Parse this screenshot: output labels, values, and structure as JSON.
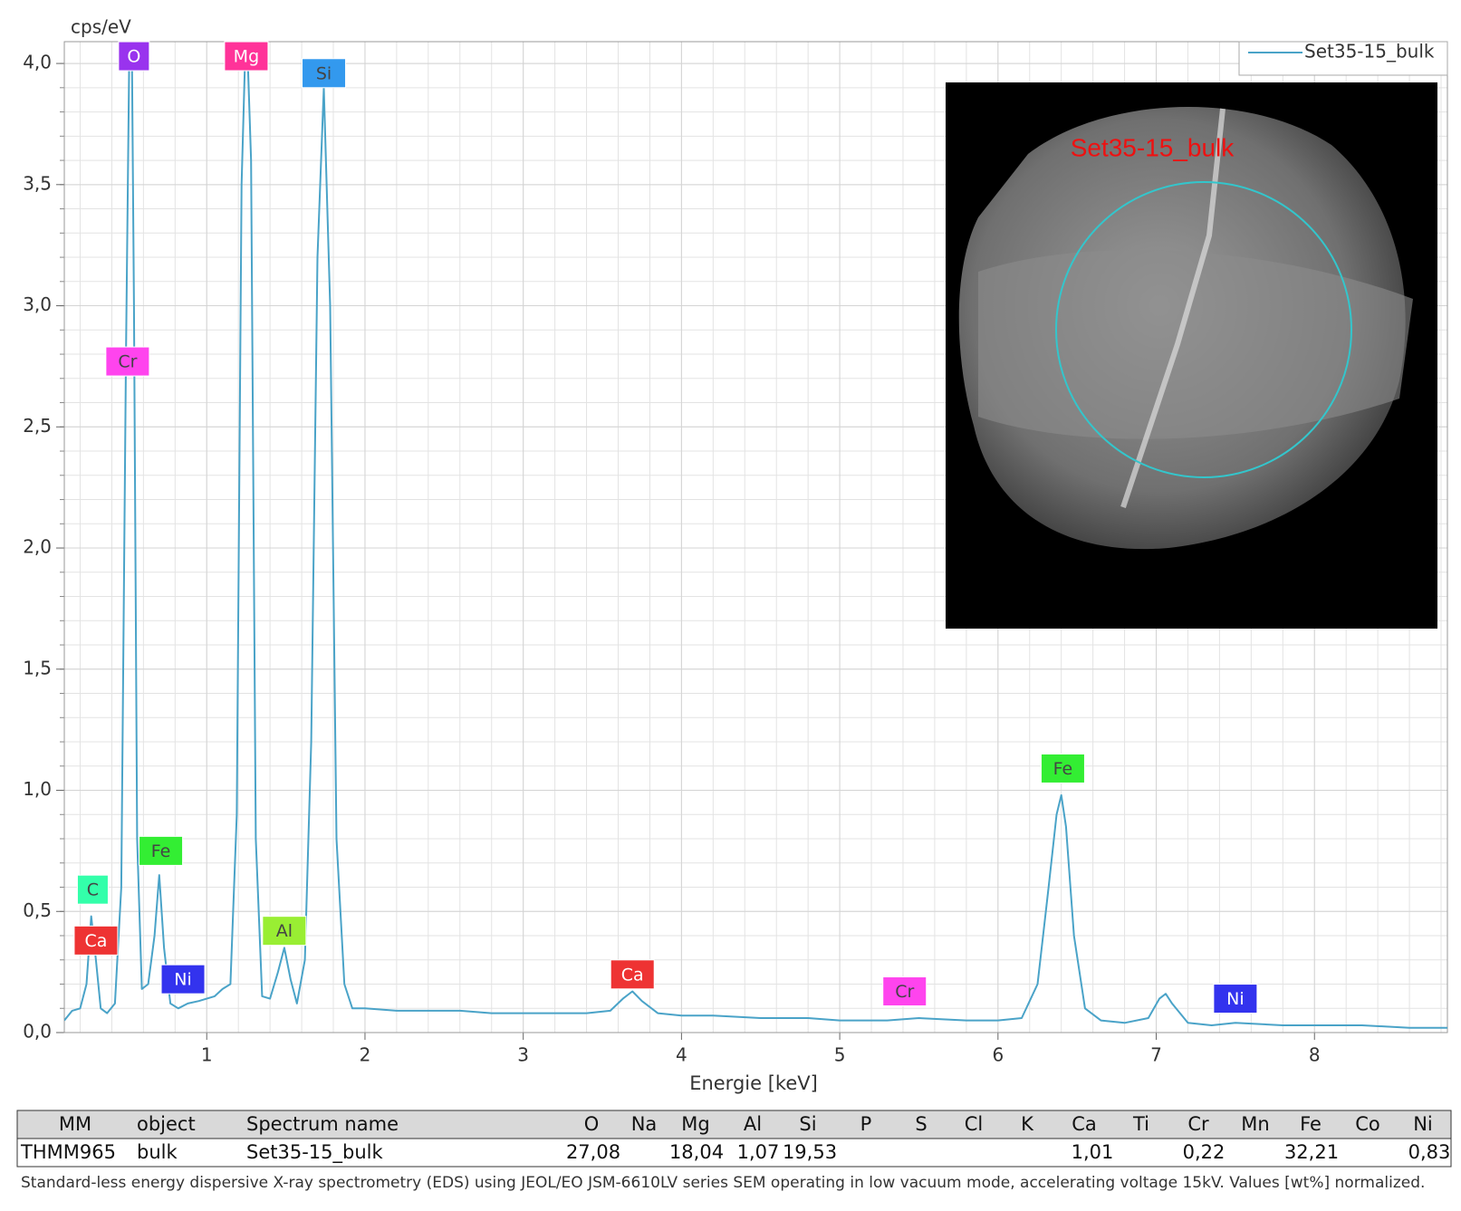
{
  "chart_data": {
    "type": "line",
    "y_unit_label": "cps/eV",
    "x_label": "Energie [keV]",
    "xlim": [
      0.1,
      8.84
    ],
    "ylim": [
      0,
      4.09
    ],
    "xticks": [
      1,
      2,
      3,
      4,
      5,
      6,
      7,
      8
    ],
    "yticks": [
      {
        "value": 0,
        "label": "0,0"
      },
      {
        "value": 0.5,
        "label": "0,5"
      },
      {
        "value": 1,
        "label": "1,0"
      },
      {
        "value": 1.5,
        "label": "1,5"
      },
      {
        "value": 2,
        "label": "2,0"
      },
      {
        "value": 2.5,
        "label": "2,5"
      },
      {
        "value": 3,
        "label": "3,0"
      },
      {
        "value": 3.5,
        "label": "3,5"
      },
      {
        "value": 4,
        "label": "4,0"
      }
    ],
    "minor_grid": {
      "x_step": 0.2,
      "y_step": 0.1
    },
    "grid": true,
    "legend": "top-right",
    "x": [
      0.1,
      0.15,
      0.2,
      0.24,
      0.27,
      0.3,
      0.33,
      0.37,
      0.42,
      0.46,
      0.49,
      0.51,
      0.525,
      0.54,
      0.56,
      0.59,
      0.63,
      0.67,
      0.7,
      0.73,
      0.77,
      0.82,
      0.88,
      0.95,
      1.0,
      1.05,
      1.1,
      1.15,
      1.19,
      1.22,
      1.25,
      1.28,
      1.31,
      1.35,
      1.4,
      1.45,
      1.49,
      1.53,
      1.57,
      1.62,
      1.66,
      1.7,
      1.74,
      1.78,
      1.82,
      1.87,
      1.92,
      2.0,
      2.2,
      2.4,
      2.6,
      2.8,
      3.0,
      3.2,
      3.4,
      3.55,
      3.63,
      3.69,
      3.75,
      3.85,
      4.0,
      4.2,
      4.5,
      4.8,
      5.0,
      5.3,
      5.5,
      5.8,
      6.0,
      6.15,
      6.25,
      6.32,
      6.37,
      6.4,
      6.43,
      6.48,
      6.55,
      6.65,
      6.8,
      6.95,
      7.02,
      7.06,
      7.1,
      7.2,
      7.35,
      7.5,
      7.8,
      8.0,
      8.3,
      8.6,
      8.84
    ],
    "series": [
      {
        "name": "Set35-15_bulk",
        "color": "#4aa3c8",
        "values": [
          0.05,
          0.09,
          0.1,
          0.2,
          0.48,
          0.3,
          0.1,
          0.08,
          0.12,
          0.6,
          2.8,
          4.0,
          4.2,
          3.0,
          0.8,
          0.18,
          0.2,
          0.4,
          0.65,
          0.35,
          0.12,
          0.1,
          0.12,
          0.13,
          0.14,
          0.15,
          0.18,
          0.2,
          0.9,
          3.5,
          4.2,
          3.6,
          0.8,
          0.15,
          0.14,
          0.25,
          0.35,
          0.22,
          0.12,
          0.3,
          1.2,
          3.2,
          3.9,
          3.0,
          0.8,
          0.2,
          0.1,
          0.1,
          0.09,
          0.09,
          0.09,
          0.08,
          0.08,
          0.08,
          0.08,
          0.09,
          0.14,
          0.17,
          0.13,
          0.08,
          0.07,
          0.07,
          0.06,
          0.06,
          0.05,
          0.05,
          0.06,
          0.05,
          0.05,
          0.06,
          0.2,
          0.6,
          0.9,
          0.98,
          0.85,
          0.4,
          0.1,
          0.05,
          0.04,
          0.06,
          0.14,
          0.16,
          0.12,
          0.04,
          0.03,
          0.04,
          0.03,
          0.03,
          0.03,
          0.02,
          0.02
        ]
      }
    ],
    "annotations": [
      {
        "text": "O",
        "x": 0.54,
        "y": 4.03,
        "color": "#9933ee"
      },
      {
        "text": "Mg",
        "x": 1.25,
        "y": 4.03,
        "color": "#ff3399"
      },
      {
        "text": "Si",
        "x": 1.74,
        "y": 3.96,
        "color": "#3399ee"
      },
      {
        "text": "Cr",
        "x": 0.5,
        "y": 2.77,
        "color": "#ff44ee"
      },
      {
        "text": "Fe",
        "x": 0.71,
        "y": 0.75,
        "color": "#33ee33"
      },
      {
        "text": "C",
        "x": 0.28,
        "y": 0.59,
        "color": "#33ffaa"
      },
      {
        "text": "Ca",
        "x": 0.3,
        "y": 0.38,
        "color": "#ee3333"
      },
      {
        "text": "Ni",
        "x": 0.85,
        "y": 0.22,
        "color": "#3333ee"
      },
      {
        "text": "Al",
        "x": 1.49,
        "y": 0.42,
        "color": "#99ee33"
      },
      {
        "text": "Ca",
        "x": 3.69,
        "y": 0.24,
        "color": "#ee3333"
      },
      {
        "text": "Cr",
        "x": 5.41,
        "y": 0.17,
        "color": "#ff44ee"
      },
      {
        "text": "Fe",
        "x": 6.41,
        "y": 1.09,
        "color": "#33ee33"
      },
      {
        "text": "Ni",
        "x": 7.5,
        "y": 0.14,
        "color": "#3333ee"
      }
    ],
    "inset_label": "Set35-15_bulk"
  },
  "table": {
    "columns": [
      "MM",
      "object",
      "Spectrum name",
      "O",
      "Na",
      "Mg",
      "Al",
      "Si",
      "P",
      "S",
      "Cl",
      "K",
      "Ca",
      "Ti",
      "Cr",
      "Mn",
      "Fe",
      "Co",
      "Ni"
    ],
    "rows": [
      [
        "THMM965",
        "bulk",
        "Set35-15_bulk",
        "27,08",
        null,
        "18,04",
        "1,07",
        "19,53",
        null,
        null,
        null,
        null,
        "1,01",
        null,
        "0,22",
        null,
        "32,21",
        null,
        "0,83"
      ]
    ]
  },
  "caption": "Standard-less energy dispersive X-ray spectrometry (EDS) using JEOL/EO JSM-6610LV series SEM operating in low vacuum mode, accelerating voltage 15kV. Values [wt%] normalized."
}
